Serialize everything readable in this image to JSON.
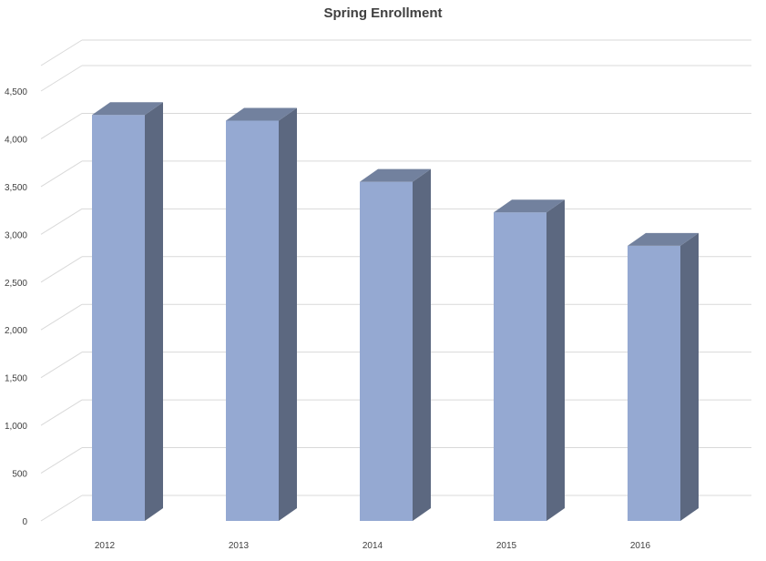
{
  "chart_data": {
    "type": "bar",
    "title": "Spring Enrollment",
    "xlabel": "",
    "ylabel": "",
    "categories": [
      "2012",
      "2013",
      "2014",
      "2015",
      "2016"
    ],
    "values": [
      4250,
      4190,
      3550,
      3230,
      2880
    ],
    "ylim": [
      0,
      4500
    ],
    "yticks": [
      "0",
      "500",
      "1,000",
      "1,500",
      "2,000",
      "2,500",
      "3,000",
      "3,500",
      "4,000",
      "4,500"
    ],
    "grid": true,
    "legend": "none",
    "colors": {
      "front": "#95A9D2",
      "side": "#5C6880",
      "top": "#72819E",
      "grid": "#D9D9D9",
      "axis": "#BFBFBF"
    }
  }
}
